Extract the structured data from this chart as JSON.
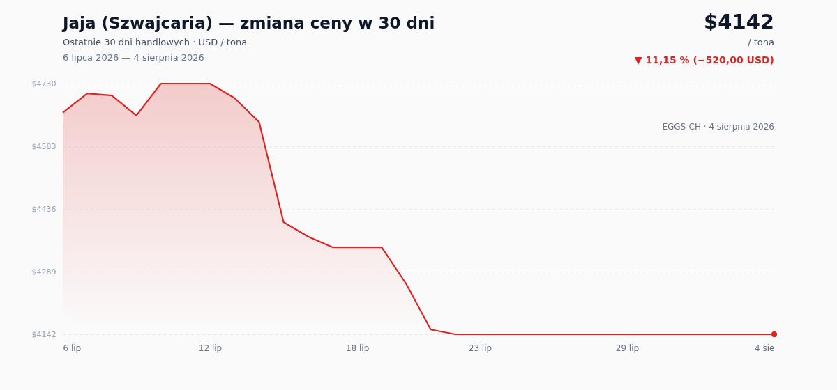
{
  "chart_data": {
    "type": "area",
    "title": "Jaja (Szwajcaria) — zmiana ceny w 30 dni",
    "subtitle": "Ostatnie 30 dni handlowych · USD / tona",
    "annotations": [
      "6 lipca 2026 — 4 sierpnia 2026",
      "$4142",
      "/ tona",
      "▼ 11,15 % (−520,00 USD)",
      "EGGS-CH · 4 sierpnia 2026"
    ],
    "x": [
      "2026-07-06",
      "2026-07-07",
      "2026-07-08",
      "2026-07-09",
      "2026-07-10",
      "2026-07-11",
      "2026-07-12",
      "2026-07-13",
      "2026-07-14",
      "2026-07-15",
      "2026-07-16",
      "2026-07-17",
      "2026-07-18",
      "2026-07-19",
      "2026-07-20",
      "2026-07-21",
      "2026-07-22",
      "2026-07-23",
      "2026-07-24",
      "2026-07-25",
      "2026-07-26",
      "2026-07-27",
      "2026-07-28",
      "2026-07-29",
      "2026-07-30",
      "2026-07-31",
      "2026-08-01",
      "2026-08-02",
      "2026-08-03",
      "2026-08-04"
    ],
    "series": [
      {
        "color": "#dc2626",
        "values": [
          4662,
          4707,
          4702,
          4655,
          4730,
          4730,
          4730,
          4696,
          4640,
          4405,
          4371,
          4346,
          4346,
          4346,
          4260,
          4153,
          4142,
          4142,
          4142,
          4142,
          4142,
          4142,
          4142,
          4142,
          4142,
          4142,
          4142,
          4142,
          4142,
          4142
        ]
      }
    ],
    "xlim": [
      "2026-07-06",
      "2026-08-04"
    ],
    "xticks": [
      {
        "value": "2026-07-06",
        "label": "6 lip"
      },
      {
        "value": "2026-07-12",
        "label": "12 lip"
      },
      {
        "value": "2026-07-18",
        "label": "18 lip"
      },
      {
        "value": "2026-07-23",
        "label": "23 lip"
      },
      {
        "value": "2026-07-29",
        "label": "29 lip"
      },
      {
        "value": "2026-08-04",
        "label": "4 sie"
      }
    ],
    "ylim": [
      4142,
      4730
    ],
    "yticks": [
      {
        "value": 4142,
        "label": "$4142"
      },
      {
        "value": 4289,
        "label": "$4289"
      },
      {
        "value": 4436,
        "label": "$4436"
      },
      {
        "value": 4583,
        "label": "$4583"
      },
      {
        "value": 4730,
        "label": "$4730"
      }
    ],
    "grid": "y"
  }
}
